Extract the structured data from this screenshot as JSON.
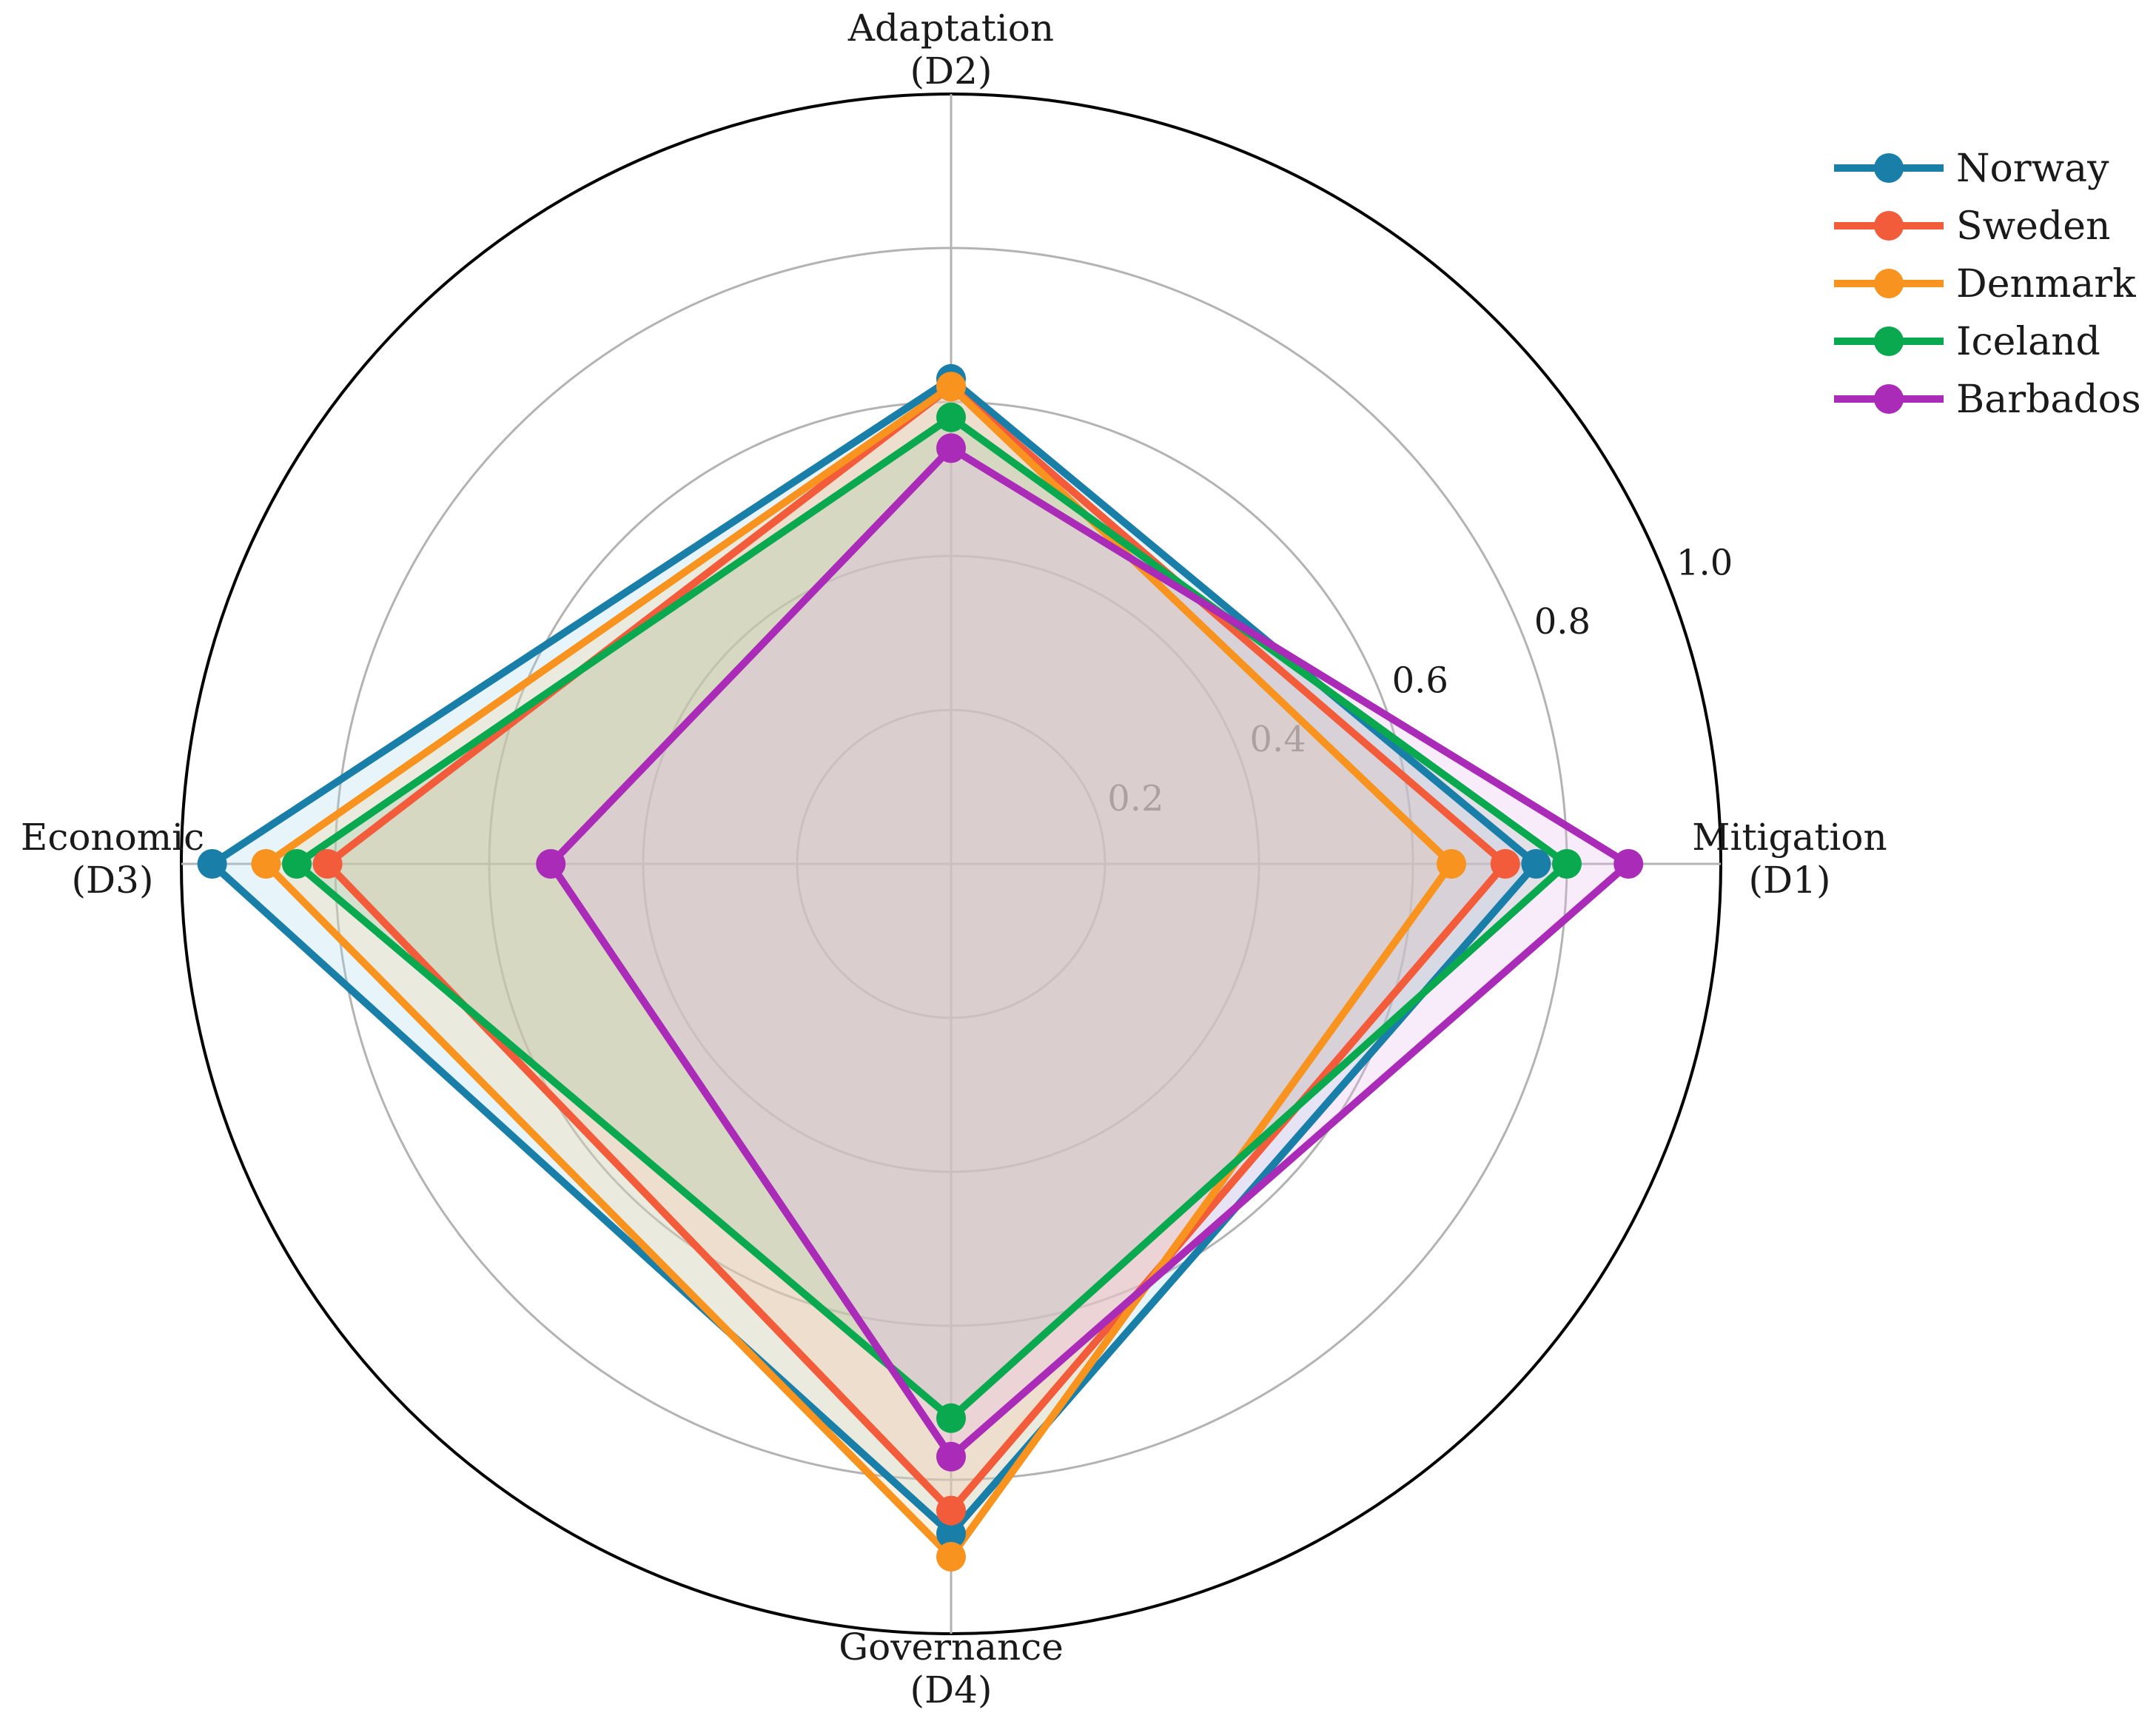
{
  "chart_data": {
    "type": "radar",
    "axes": [
      {
        "name": "Mitigation",
        "code": "(D1)"
      },
      {
        "name": "Adaptation",
        "code": "(D2)"
      },
      {
        "name": "Economic",
        "code": "(D3)"
      },
      {
        "name": "Governance",
        "code": "(D4)"
      }
    ],
    "rticks": [
      "0.2",
      "0.4",
      "0.6",
      "0.8",
      "1.0"
    ],
    "rtick_values": [
      0.2,
      0.4,
      0.6,
      0.8,
      1.0
    ],
    "rlim": [
      0,
      1.0
    ],
    "grid": true,
    "legend_position": "top-right",
    "series": [
      {
        "name": "Norway",
        "color": "#1a7fa8",
        "fill": "#a9d6ea",
        "values": [
          0.76,
          0.63,
          0.96,
          0.87
        ]
      },
      {
        "name": "Sweden",
        "color": "#f25c3a",
        "fill": "#f4b8a6",
        "values": [
          0.72,
          0.62,
          0.81,
          0.84
        ]
      },
      {
        "name": "Denmark",
        "color": "#f7931e",
        "fill": "#f6cf9a",
        "values": [
          0.65,
          0.62,
          0.89,
          0.9
        ]
      },
      {
        "name": "Iceland",
        "color": "#0aa84f",
        "fill": "#9cc8a4",
        "values": [
          0.8,
          0.58,
          0.85,
          0.72
        ]
      },
      {
        "name": "Barbados",
        "color": "#a92bb8",
        "fill": "#e7b6ec",
        "values": [
          0.88,
          0.54,
          0.52,
          0.77
        ]
      }
    ]
  }
}
